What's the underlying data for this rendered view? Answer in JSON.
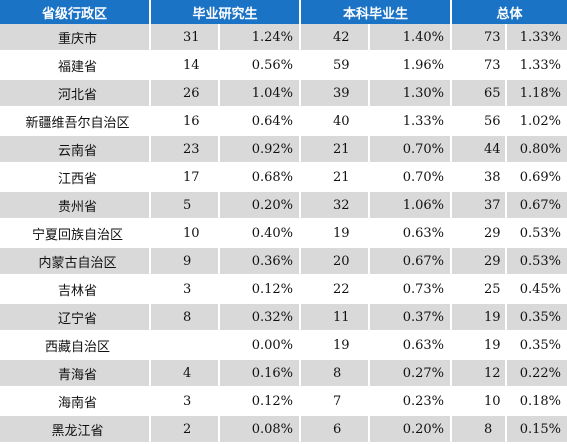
{
  "headers": [
    "省级行政区",
    "毕业研究生",
    "本科毕业生",
    "总体"
  ],
  "rows": [
    {
      "province": "重庆市",
      "grad_count": "31",
      "grad_pct": "1.24%",
      "ug_count": "42",
      "ug_pct": "1.40%",
      "total_count": "73",
      "total_pct": "1.33%"
    },
    {
      "province": "福建省",
      "grad_count": "14",
      "grad_pct": "0.56%",
      "ug_count": "59",
      "ug_pct": "1.96%",
      "total_count": "73",
      "total_pct": "1.33%"
    },
    {
      "province": "河北省",
      "grad_count": "26",
      "grad_pct": "1.04%",
      "ug_count": "39",
      "ug_pct": "1.30%",
      "total_count": "65",
      "total_pct": "1.18%"
    },
    {
      "province": "新疆维吾尔自治区",
      "grad_count": "16",
      "grad_pct": "0.64%",
      "ug_count": "40",
      "ug_pct": "1.33%",
      "total_count": "56",
      "total_pct": "1.02%"
    },
    {
      "province": "云南省",
      "grad_count": "23",
      "grad_pct": "0.92%",
      "ug_count": "21",
      "ug_pct": "0.70%",
      "total_count": "44",
      "total_pct": "0.80%"
    },
    {
      "province": "江西省",
      "grad_count": "17",
      "grad_pct": "0.68%",
      "ug_count": "21",
      "ug_pct": "0.70%",
      "total_count": "38",
      "total_pct": "0.69%"
    },
    {
      "province": "贵州省",
      "grad_count": "5",
      "grad_pct": "0.20%",
      "ug_count": "32",
      "ug_pct": "1.06%",
      "total_count": "37",
      "total_pct": "0.67%"
    },
    {
      "province": "宁夏回族自治区",
      "grad_count": "10",
      "grad_pct": "0.40%",
      "ug_count": "19",
      "ug_pct": "0.63%",
      "total_count": "29",
      "total_pct": "0.53%"
    },
    {
      "province": "内蒙古自治区",
      "grad_count": "9",
      "grad_pct": "0.36%",
      "ug_count": "20",
      "ug_pct": "0.67%",
      "total_count": "29",
      "total_pct": "0.53%"
    },
    {
      "province": "吉林省",
      "grad_count": "3",
      "grad_pct": "0.12%",
      "ug_count": "22",
      "ug_pct": "0.73%",
      "total_count": "25",
      "total_pct": "0.45%"
    },
    {
      "province": "辽宁省",
      "grad_count": "8",
      "grad_pct": "0.32%",
      "ug_count": "11",
      "ug_pct": "0.37%",
      "total_count": "19",
      "total_pct": "0.35%"
    },
    {
      "province": "西藏自治区",
      "grad_count": "",
      "grad_pct": "0.00%",
      "ug_count": "19",
      "ug_pct": "0.63%",
      "total_count": "19",
      "total_pct": "0.35%"
    },
    {
      "province": "青海省",
      "grad_count": "4",
      "grad_pct": "0.16%",
      "ug_count": "8",
      "ug_pct": "0.27%",
      "total_count": "12",
      "total_pct": "0.22%"
    },
    {
      "province": "海南省",
      "grad_count": "3",
      "grad_pct": "0.12%",
      "ug_count": "7",
      "ug_pct": "0.23%",
      "total_count": "10",
      "total_pct": "0.18%"
    },
    {
      "province": "黑龙江省",
      "grad_count": "2",
      "grad_pct": "0.08%",
      "ug_count": "6",
      "ug_pct": "0.20%",
      "total_count": "8",
      "total_pct": "0.15%"
    }
  ],
  "colors": {
    "header_bg": "#1b73c6",
    "header_text": "#ffffff",
    "shaded_row": "#d9d9d9",
    "plain_row": "#ffffff"
  }
}
